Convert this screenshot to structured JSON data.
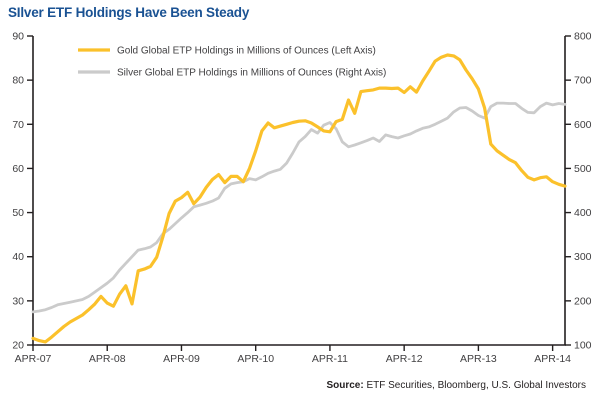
{
  "title": "SIlver ETF Holdings Have Been Steady",
  "source": {
    "label": "Source:",
    "text": " ETF Securities, Bloomberg, U.S. Global Investors"
  },
  "colors": {
    "title_blue": "#1A5293",
    "gold": "#FBC12B",
    "silver": "#CBCBCB",
    "axis": "#231F20",
    "tick_text": "#414042"
  },
  "chart_data": {
    "type": "line",
    "title": "SIlver ETF Holdings Have Been Steady",
    "grid": false,
    "legend_position": "top-left-inside",
    "x_axis": {
      "cadence": "monthly",
      "start": "APR-07",
      "end": "JUN-14",
      "tick_labels": [
        "APR-07",
        "APR-08",
        "APR-09",
        "APR-10",
        "APR-11",
        "APR-12",
        "APR-13",
        "APR-14"
      ],
      "tick_month_indices": [
        0,
        12,
        24,
        36,
        48,
        60,
        72,
        84
      ]
    },
    "left_axis": {
      "min": 20,
      "max": 90,
      "ticks": [
        20,
        30,
        40,
        50,
        60,
        70,
        80,
        90
      ]
    },
    "right_axis": {
      "min": 100,
      "max": 800,
      "ticks": [
        100,
        200,
        300,
        400,
        500,
        600,
        700,
        800
      ]
    },
    "series": [
      {
        "name": "Gold Global ETP Holdings in Millions of Ounces (Left Axis)",
        "axis": "left",
        "color_key": "gold",
        "values": [
          21.5,
          21.0,
          20.7,
          21.8,
          23.0,
          24.2,
          25.2,
          26.0,
          26.8,
          28.0,
          29.3,
          31.0,
          29.5,
          28.8,
          31.5,
          33.4,
          29.3,
          36.8,
          37.2,
          37.8,
          39.9,
          44.5,
          49.8,
          52.6,
          53.4,
          54.6,
          52.0,
          53.5,
          55.7,
          57.5,
          58.6,
          56.8,
          58.2,
          58.2,
          57.0,
          60.0,
          64.0,
          68.5,
          70.3,
          69.2,
          69.6,
          70.0,
          70.4,
          70.7,
          70.8,
          70.3,
          69.4,
          68.5,
          68.3,
          70.6,
          71.1,
          75.5,
          72.5,
          77.4,
          77.6,
          77.8,
          78.2,
          78.2,
          78.1,
          78.2,
          77.2,
          78.5,
          77.3,
          79.8,
          82.0,
          84.3,
          85.2,
          85.7,
          85.5,
          84.6,
          82.3,
          80.3,
          78.0,
          73.7,
          65.5,
          64.0,
          63.0,
          62.0,
          61.3,
          59.5,
          58.0,
          57.4,
          57.9,
          58.1,
          57.0,
          56.4,
          56.0
        ]
      },
      {
        "name": "Silver Global ETP Holdings in Millions of Ounces (Right Axis)",
        "axis": "right",
        "color_key": "silver",
        "values": [
          175,
          177,
          180,
          185,
          191,
          194,
          197,
          200,
          203,
          210,
          220,
          230,
          240,
          252,
          270,
          285,
          300,
          315,
          318,
          322,
          332,
          352,
          362,
          375,
          388,
          400,
          413,
          417,
          421,
          426,
          433,
          455,
          465,
          468,
          470,
          477,
          474,
          481,
          489,
          494,
          498,
          512,
          535,
          560,
          572,
          588,
          580,
          598,
          604,
          590,
          560,
          549,
          553,
          558,
          563,
          569,
          561,
          576,
          572,
          569,
          574,
          578,
          585,
          591,
          594,
          600,
          607,
          614,
          628,
          637,
          638,
          630,
          620,
          614,
          640,
          648,
          648,
          647,
          647,
          636,
          627,
          626,
          640,
          648,
          644,
          647,
          645
        ]
      }
    ]
  }
}
